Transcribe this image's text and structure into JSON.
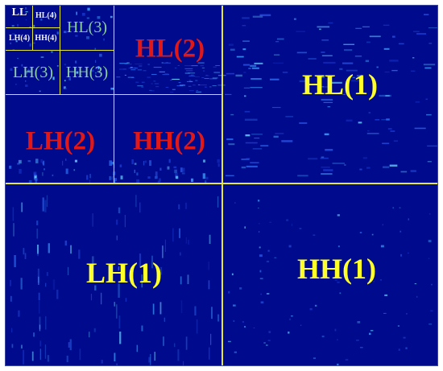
{
  "colors": {
    "background": "#000a8c",
    "grid_line": "#e6e635",
    "level1_label": "#ffff2a",
    "level2_label": "#e01818",
    "level3_label": "#8ccf9c",
    "level4_label": "#f2f2f2"
  },
  "subbands": {
    "LL4": "LL",
    "HL4": "HL(4)",
    "LH4": "LH(4)",
    "HH4": "HH(4)",
    "HL3": "HL(3)",
    "LH3": "LH(3)",
    "HH3": "HH(3)",
    "HL2": "HL(2)",
    "LH2": "LH(2)",
    "HH2": "HH(2)",
    "HL1": "HL(1)",
    "LH1": "LH(1)",
    "HH1": "HH(1)"
  }
}
